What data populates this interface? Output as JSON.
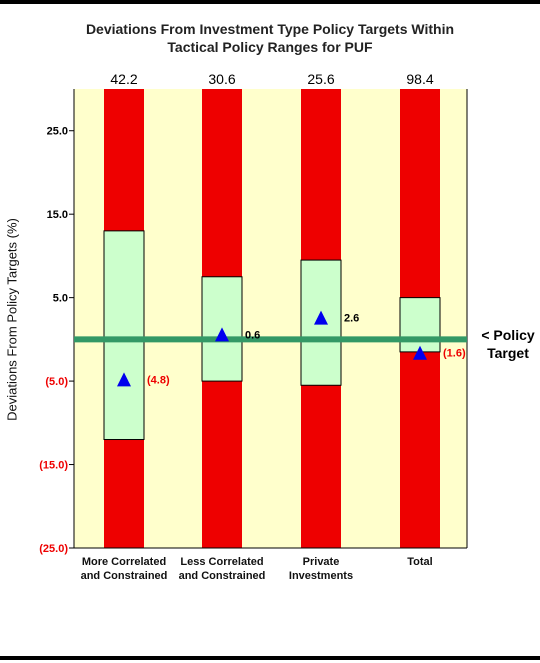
{
  "chart_data": {
    "type": "bar",
    "title_lines": [
      "Deviations From Investment Type Policy Targets Within",
      "Tactical Policy Ranges for PUF"
    ],
    "ylabel": "Deviations From Policy Targets (%)",
    "ylim": [
      -25,
      30
    ],
    "yticks": [
      {
        "value": 25,
        "label": "25.0"
      },
      {
        "value": 15,
        "label": "15.0"
      },
      {
        "value": 5,
        "label": "5.0"
      },
      {
        "value": -5,
        "label": "(5.0)"
      },
      {
        "value": -15,
        "label": "(15.0)"
      },
      {
        "value": -25,
        "label": "(25.0)"
      }
    ],
    "reference_line": {
      "value": 0,
      "label_lines": [
        "< Policy",
        "Target"
      ]
    },
    "categories": [
      {
        "lines": [
          "More Correlated",
          "and Constrained"
        ],
        "range_total": "42.2",
        "range_low": -12,
        "range_high": 13,
        "current": -4.8,
        "current_label": "(4.8)"
      },
      {
        "lines": [
          "Less Correlated",
          "and Constrained"
        ],
        "range_total": "30.6",
        "range_low": -5,
        "range_high": 7.5,
        "current": 0.6,
        "current_label": "0.6"
      },
      {
        "lines": [
          "Private",
          "Investments"
        ],
        "range_total": "25.6",
        "range_low": -5.5,
        "range_high": 9.5,
        "current": 2.6,
        "current_label": "2.6"
      },
      {
        "lines": [
          "Total"
        ],
        "range_total": "98.4",
        "range_low": -1.5,
        "range_high": 5,
        "current": -1.6,
        "current_label": "(1.6)"
      }
    ],
    "colors": {
      "plot_background": "#ffffcc",
      "outside_range": "#ee0000",
      "within_range": "#ccffcc",
      "policy_line": "#339966",
      "current_marker": "#0000ee",
      "negative_text": "#ee0000"
    }
  }
}
